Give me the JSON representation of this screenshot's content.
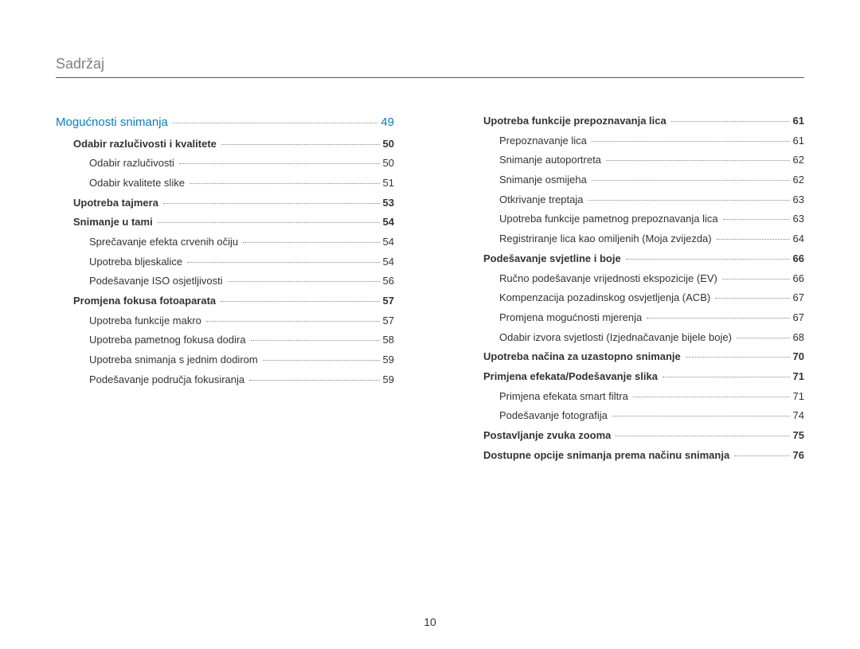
{
  "header": "Sadržaj",
  "pageNumber": "10",
  "leftColumn": [
    {
      "level": 0,
      "label": "Mogućnosti snimanja",
      "page": "49"
    },
    {
      "level": 1,
      "label": "Odabir razlučivosti i kvalitete",
      "page": "50"
    },
    {
      "level": 2,
      "label": "Odabir razlučivosti",
      "page": "50"
    },
    {
      "level": 2,
      "label": "Odabir kvalitete slike",
      "page": "51"
    },
    {
      "level": 1,
      "label": "Upotreba tajmera",
      "page": "53"
    },
    {
      "level": 1,
      "label": "Snimanje u tami",
      "page": "54"
    },
    {
      "level": 2,
      "label": "Sprečavanje efekta crvenih očiju",
      "page": "54"
    },
    {
      "level": 2,
      "label": "Upotreba bljeskalice",
      "page": "54"
    },
    {
      "level": 2,
      "label": "Podešavanje ISO osjetljivosti",
      "page": "56"
    },
    {
      "level": 1,
      "label": "Promjena fokusa fotoaparata",
      "page": "57"
    },
    {
      "level": 2,
      "label": "Upotreba funkcije makro",
      "page": "57"
    },
    {
      "level": 2,
      "label": "Upotreba pametnog fokusa dodira",
      "page": "58"
    },
    {
      "level": 2,
      "label": "Upotreba snimanja s jednim dodirom",
      "page": "59"
    },
    {
      "level": 2,
      "label": "Podešavanje područja fokusiranja",
      "page": "59"
    }
  ],
  "rightColumn": [
    {
      "level": 1,
      "label": "Upotreba funkcije prepoznavanja lica",
      "page": "61"
    },
    {
      "level": 2,
      "label": "Prepoznavanje lica",
      "page": "61"
    },
    {
      "level": 2,
      "label": "Snimanje autoportreta",
      "page": "62"
    },
    {
      "level": 2,
      "label": "Snimanje osmijeha",
      "page": "62"
    },
    {
      "level": 2,
      "label": "Otkrivanje treptaja",
      "page": "63"
    },
    {
      "level": 2,
      "label": "Upotreba funkcije pametnog prepoznavanja lica",
      "page": "63"
    },
    {
      "level": 2,
      "label": "Registriranje lica kao omiljenih (Moja zvijezda)",
      "page": "64"
    },
    {
      "level": 1,
      "label": "Podešavanje svjetline i boje",
      "page": "66"
    },
    {
      "level": 2,
      "label": "Ručno podešavanje vrijednosti ekspozicije (EV)",
      "page": "66"
    },
    {
      "level": 2,
      "label": "Kompenzacija pozadinskog osvjetljenja (ACB)",
      "page": "67"
    },
    {
      "level": 2,
      "label": "Promjena mogućnosti mjerenja",
      "page": "67"
    },
    {
      "level": 2,
      "label": "Odabir izvora svjetlosti (Izjednačavanje bijele boje)",
      "page": "68"
    },
    {
      "level": 1,
      "label": "Upotreba načina za uzastopno snimanje",
      "page": "70"
    },
    {
      "level": 1,
      "label": "Primjena efekata/Podešavanje slika",
      "page": "71"
    },
    {
      "level": 2,
      "label": "Primjena efekata smart filtra",
      "page": "71"
    },
    {
      "level": 2,
      "label": "Podešavanje fotografija",
      "page": "74"
    },
    {
      "level": 1,
      "label": "Postavljanje zvuka zooma",
      "page": "75"
    },
    {
      "level": 1,
      "label": "Dostupne opcije snimanja prema načinu snimanja",
      "page": "76"
    }
  ]
}
